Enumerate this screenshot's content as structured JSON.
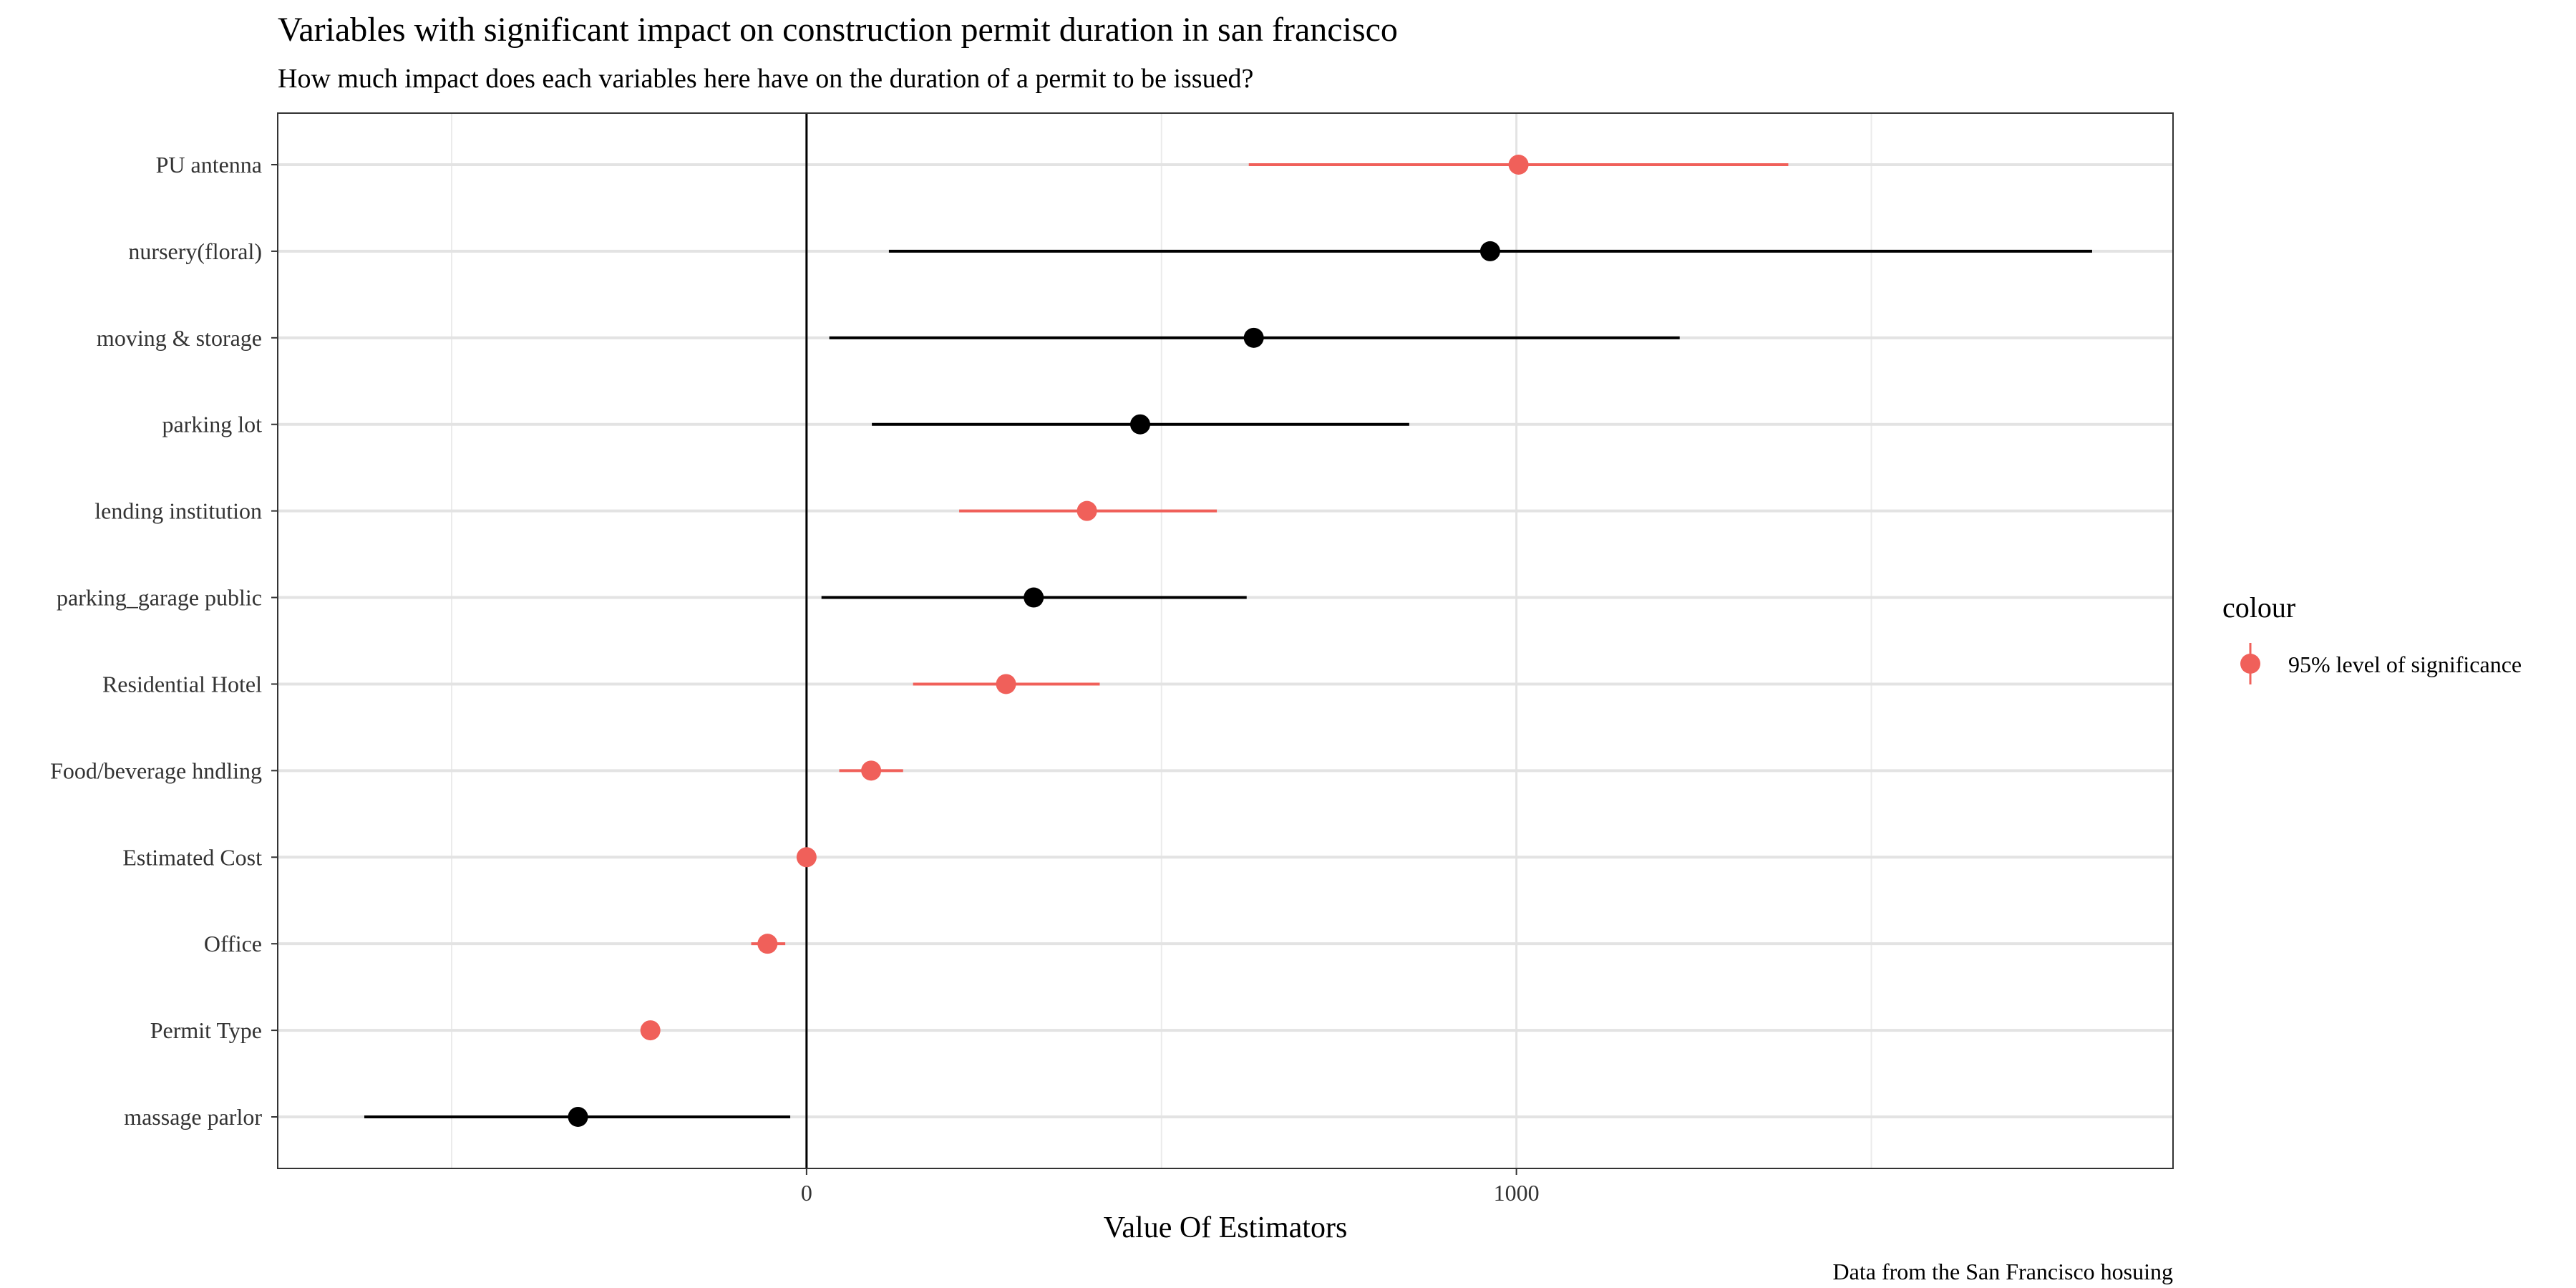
{
  "chart_data": {
    "type": "scatter",
    "subtype": "coefficient-plot-with-intervals",
    "title": "Variables with significant impact on construction permit duration in san francisco",
    "subtitle": "How much impact does each variables here have on the duration of a permit to be issued?",
    "xlabel": "Value Of Estimators",
    "ylabel": "",
    "caption": "Data from the San Francisco hosuing",
    "xlim": [
      -745,
      1925
    ],
    "x_ticks": [
      0,
      1000
    ],
    "grid": true,
    "reference_line_x": 0,
    "legend": {
      "title": "colour",
      "placement": "right",
      "entries": [
        {
          "label": "95% level of significance",
          "color": "#F0605A"
        }
      ]
    },
    "colors": {
      "significant": "#F0605A",
      "other": "#000000"
    },
    "categories": [
      "PU antenna",
      "nursery(floral)",
      "moving & storage",
      "parking lot",
      "lending institution",
      "parking_garage public",
      "Residential Hotel",
      "Food/beverage hndling",
      "Estimated Cost",
      "Office",
      "Permit Type",
      "massage parlor"
    ],
    "points": [
      {
        "label": "PU antenna",
        "estimate": 1003,
        "low": 623,
        "high": 1383,
        "significant": true
      },
      {
        "label": "nursery(floral)",
        "estimate": 963,
        "low": 116,
        "high": 1811,
        "significant": false
      },
      {
        "label": "moving & storage",
        "estimate": 630,
        "low": 32,
        "high": 1230,
        "significant": false
      },
      {
        "label": "parking lot",
        "estimate": 470,
        "low": 92,
        "high": 849,
        "significant": false
      },
      {
        "label": "lending institution",
        "estimate": 395,
        "low": 215,
        "high": 578,
        "significant": true
      },
      {
        "label": "parking_garage public",
        "estimate": 320,
        "low": 21,
        "high": 620,
        "significant": false
      },
      {
        "label": "Residential Hotel",
        "estimate": 281,
        "low": 150,
        "high": 413,
        "significant": true
      },
      {
        "label": "Food/beverage hndling",
        "estimate": 91,
        "low": 46,
        "high": 136,
        "significant": true
      },
      {
        "label": "Estimated Cost",
        "estimate": 0,
        "low": 0,
        "high": 0,
        "significant": true
      },
      {
        "label": "Office",
        "estimate": -55,
        "low": -78,
        "high": -30,
        "significant": true
      },
      {
        "label": "Permit Type",
        "estimate": -220,
        "low": -223,
        "high": -217,
        "significant": true
      },
      {
        "label": "massage parlor",
        "estimate": -322,
        "low": -623,
        "high": -23,
        "significant": false
      }
    ]
  }
}
